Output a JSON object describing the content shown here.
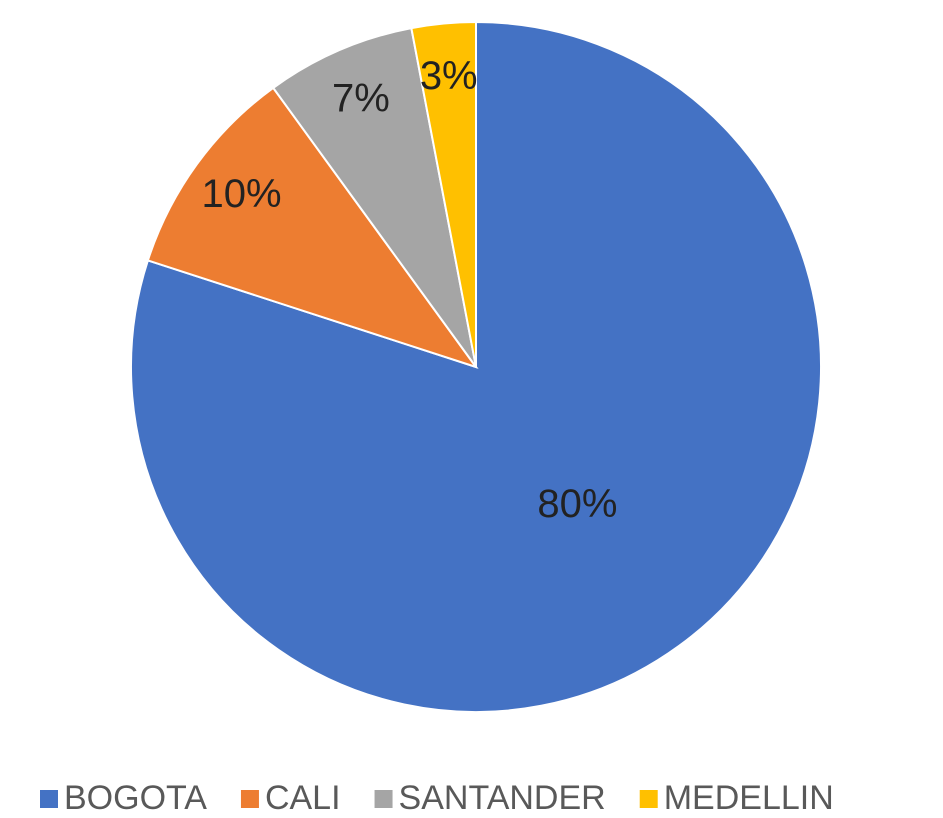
{
  "chart_data": {
    "type": "pie",
    "categories": [
      "BOGOTA",
      "CALI",
      "SANTANDER",
      "MEDELLIN"
    ],
    "values": [
      80,
      10,
      7,
      3
    ],
    "value_labels": [
      "80%",
      "10%",
      "7%",
      "3%"
    ],
    "colors": [
      "#4472c4",
      "#ed7d31",
      "#a5a5a5",
      "#ffc000"
    ],
    "legend": "bottom"
  }
}
